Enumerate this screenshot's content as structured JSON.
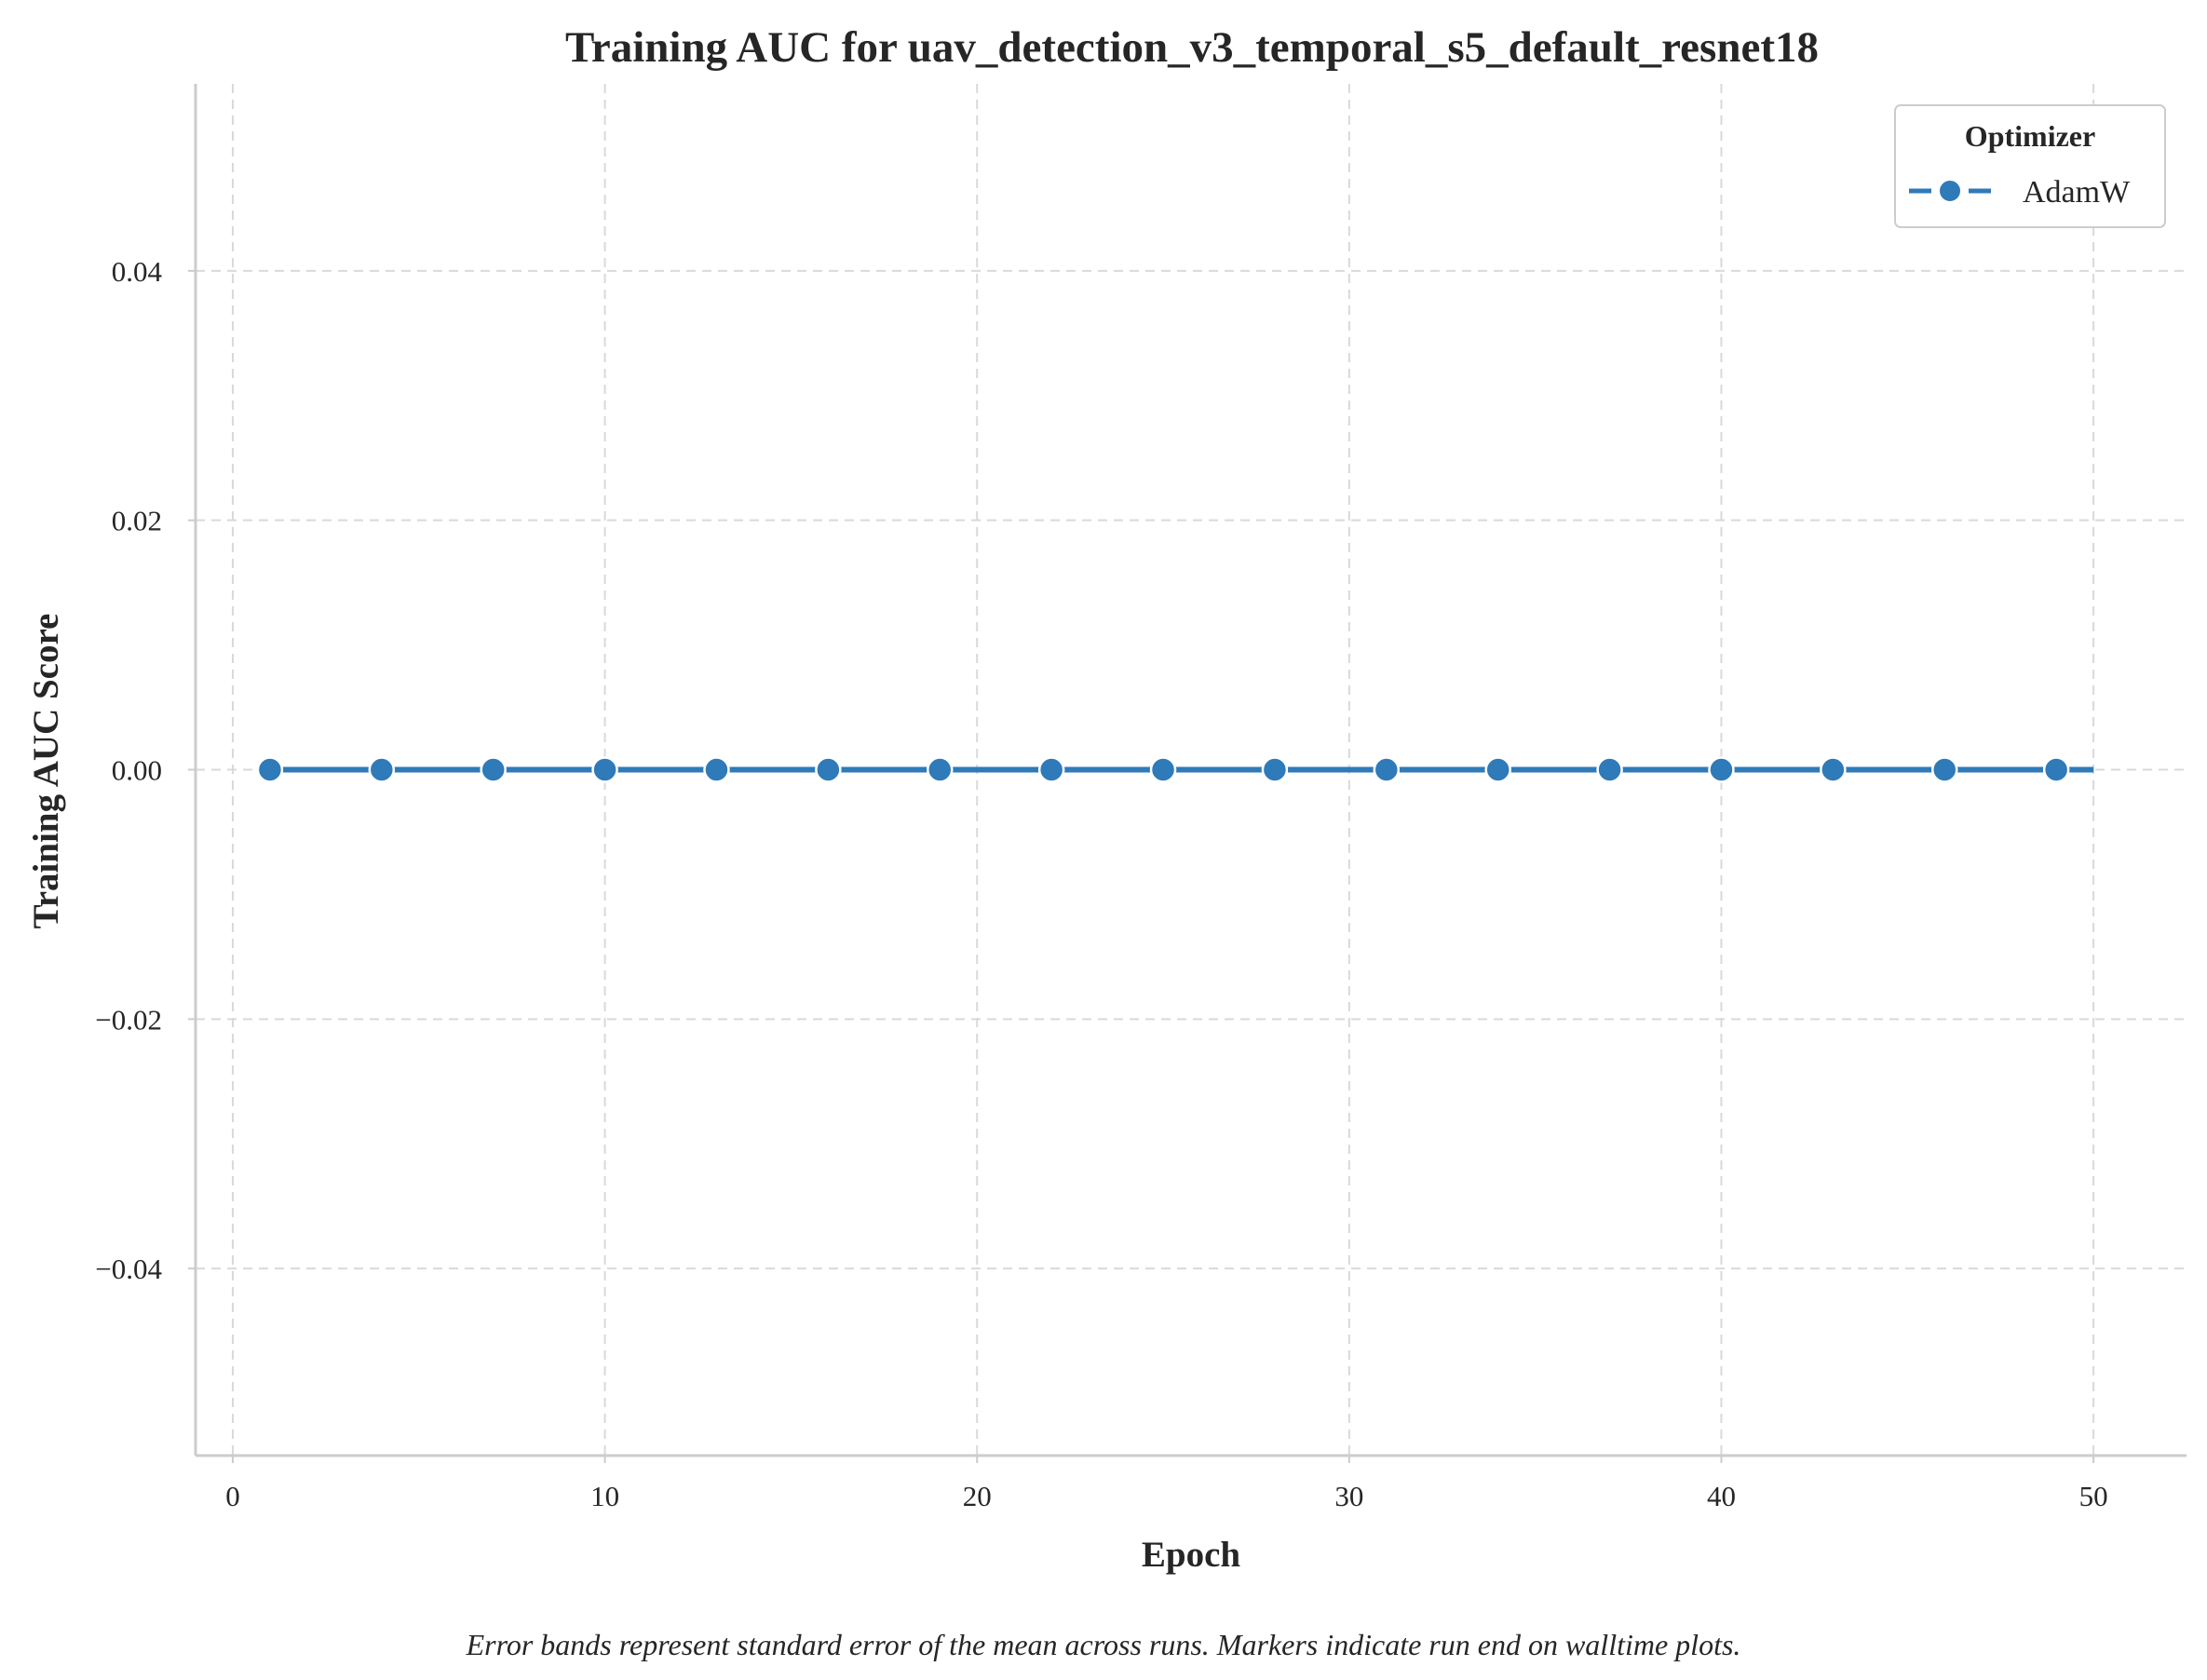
{
  "chart_data": {
    "type": "line",
    "title": "Training AUC for uav_detection_v3_temporal_s5_default_resnet18",
    "xlabel": "Epoch",
    "ylabel": "Training AUC Score",
    "xlim": [
      -1,
      52.5
    ],
    "ylim": [
      -0.055,
      0.055
    ],
    "x_ticks": [
      0,
      10,
      20,
      30,
      40,
      50
    ],
    "x_tick_labels": [
      "0",
      "10",
      "20",
      "30",
      "40",
      "50"
    ],
    "y_ticks": [
      -0.04,
      -0.02,
      0.0,
      0.02,
      0.04
    ],
    "y_tick_labels": [
      "−0.04",
      "−0.02",
      "0.00",
      "0.02",
      "0.04"
    ],
    "grid": true,
    "legend": {
      "title": "Optimizer",
      "placement": "top-right"
    },
    "series": [
      {
        "name": "AdamW",
        "color": "#2f7ab9",
        "line_x": [
          1,
          50
        ],
        "line_y": [
          0,
          0
        ],
        "marker_x": [
          1,
          4,
          7,
          10,
          13,
          16,
          19,
          22,
          25,
          28,
          31,
          34,
          37,
          40,
          43,
          46,
          49
        ],
        "marker_y": [
          0,
          0,
          0,
          0,
          0,
          0,
          0,
          0,
          0,
          0,
          0,
          0,
          0,
          0,
          0,
          0,
          0
        ]
      }
    ],
    "footnote": "Error bands represent standard error of the mean across runs. Markers indicate run end on walltime plots."
  }
}
